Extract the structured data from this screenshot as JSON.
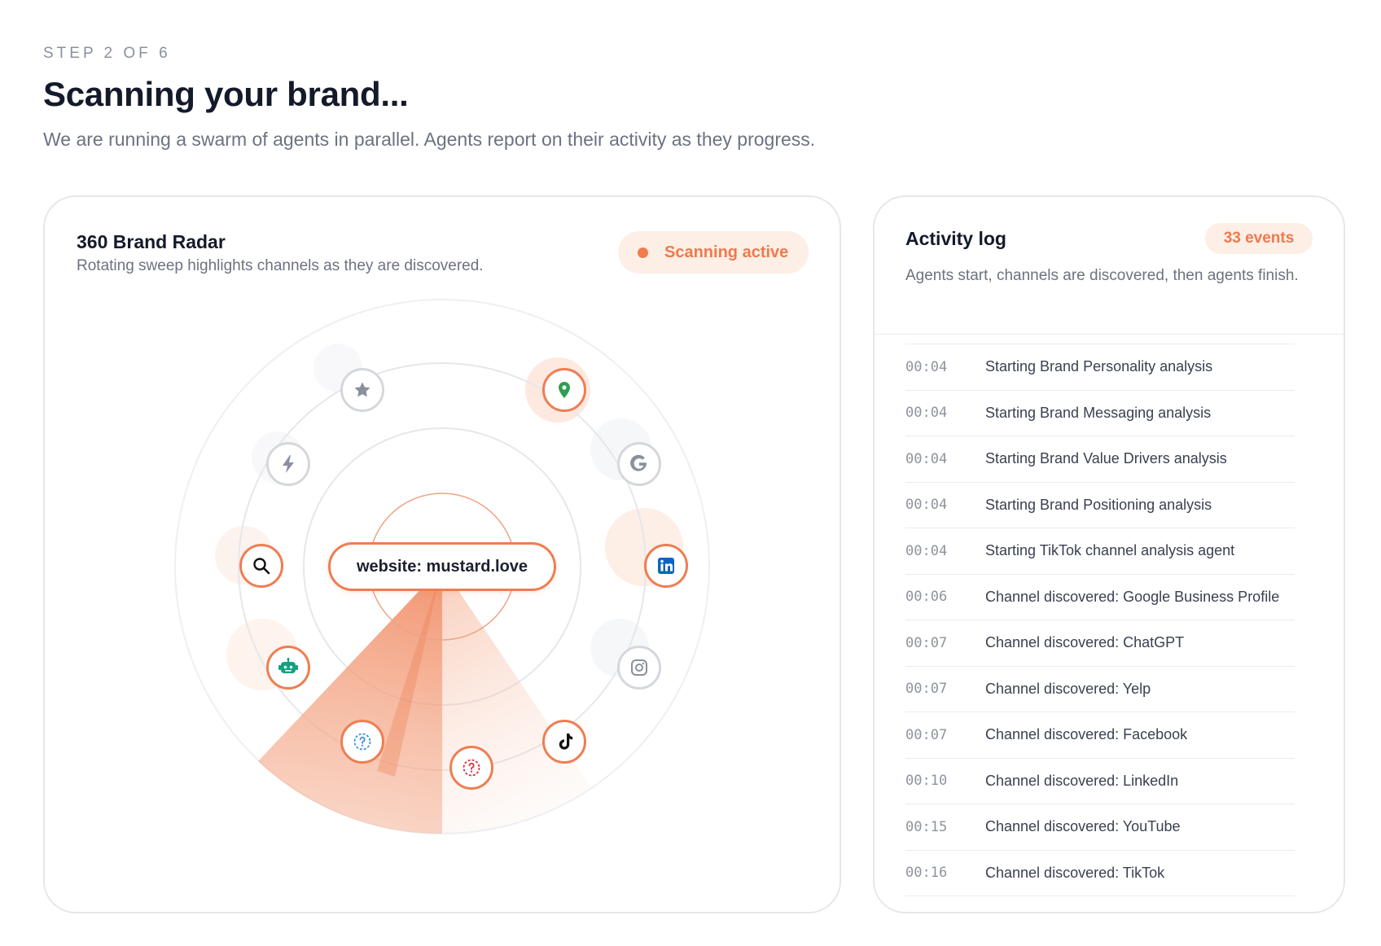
{
  "header": {
    "step": "STEP 2 OF 6",
    "title": "Scanning your brand...",
    "subtitle": "We are running a swarm of agents in parallel. Agents report on their activity as they progress."
  },
  "radar": {
    "title": "360 Brand Radar",
    "subtitle": "Rotating sweep highlights channels as they are discovered.",
    "status": "Scanning active",
    "target": "website: mustard.love",
    "accent_color": "#ef7d52",
    "channels": [
      {
        "icon": "star-icon",
        "discovered": false
      },
      {
        "icon": "map-pin-icon",
        "discovered": true
      },
      {
        "icon": "google-icon",
        "discovered": false
      },
      {
        "icon": "linkedin-icon",
        "discovered": true
      },
      {
        "icon": "instagram-icon",
        "discovered": false
      },
      {
        "icon": "tiktok-icon",
        "discovered": true
      },
      {
        "icon": "question-red-icon",
        "discovered": true
      },
      {
        "icon": "question-blue-icon",
        "discovered": true
      },
      {
        "icon": "robot-icon",
        "discovered": true
      },
      {
        "icon": "search-icon",
        "discovered": true
      },
      {
        "icon": "lightning-icon",
        "discovered": false
      }
    ]
  },
  "log": {
    "title": "Activity log",
    "count": "33 events",
    "subtitle": "Agents start, channels are discovered, then agents finish.",
    "rows": [
      {
        "time": "00:04",
        "message": "Starting Brand Personality analysis"
      },
      {
        "time": "00:04",
        "message": "Starting Brand Messaging analysis"
      },
      {
        "time": "00:04",
        "message": "Starting Brand Value Drivers analysis"
      },
      {
        "time": "00:04",
        "message": "Starting Brand Positioning analysis"
      },
      {
        "time": "00:04",
        "message": "Starting TikTok channel analysis agent"
      },
      {
        "time": "00:06",
        "message": "Channel discovered: Google Business Profile"
      },
      {
        "time": "00:07",
        "message": "Channel discovered: ChatGPT"
      },
      {
        "time": "00:07",
        "message": "Channel discovered: Yelp"
      },
      {
        "time": "00:07",
        "message": "Channel discovered: Facebook"
      },
      {
        "time": "00:10",
        "message": "Channel discovered: LinkedIn"
      },
      {
        "time": "00:15",
        "message": "Channel discovered: YouTube"
      },
      {
        "time": "00:16",
        "message": "Channel discovered: TikTok"
      }
    ]
  }
}
